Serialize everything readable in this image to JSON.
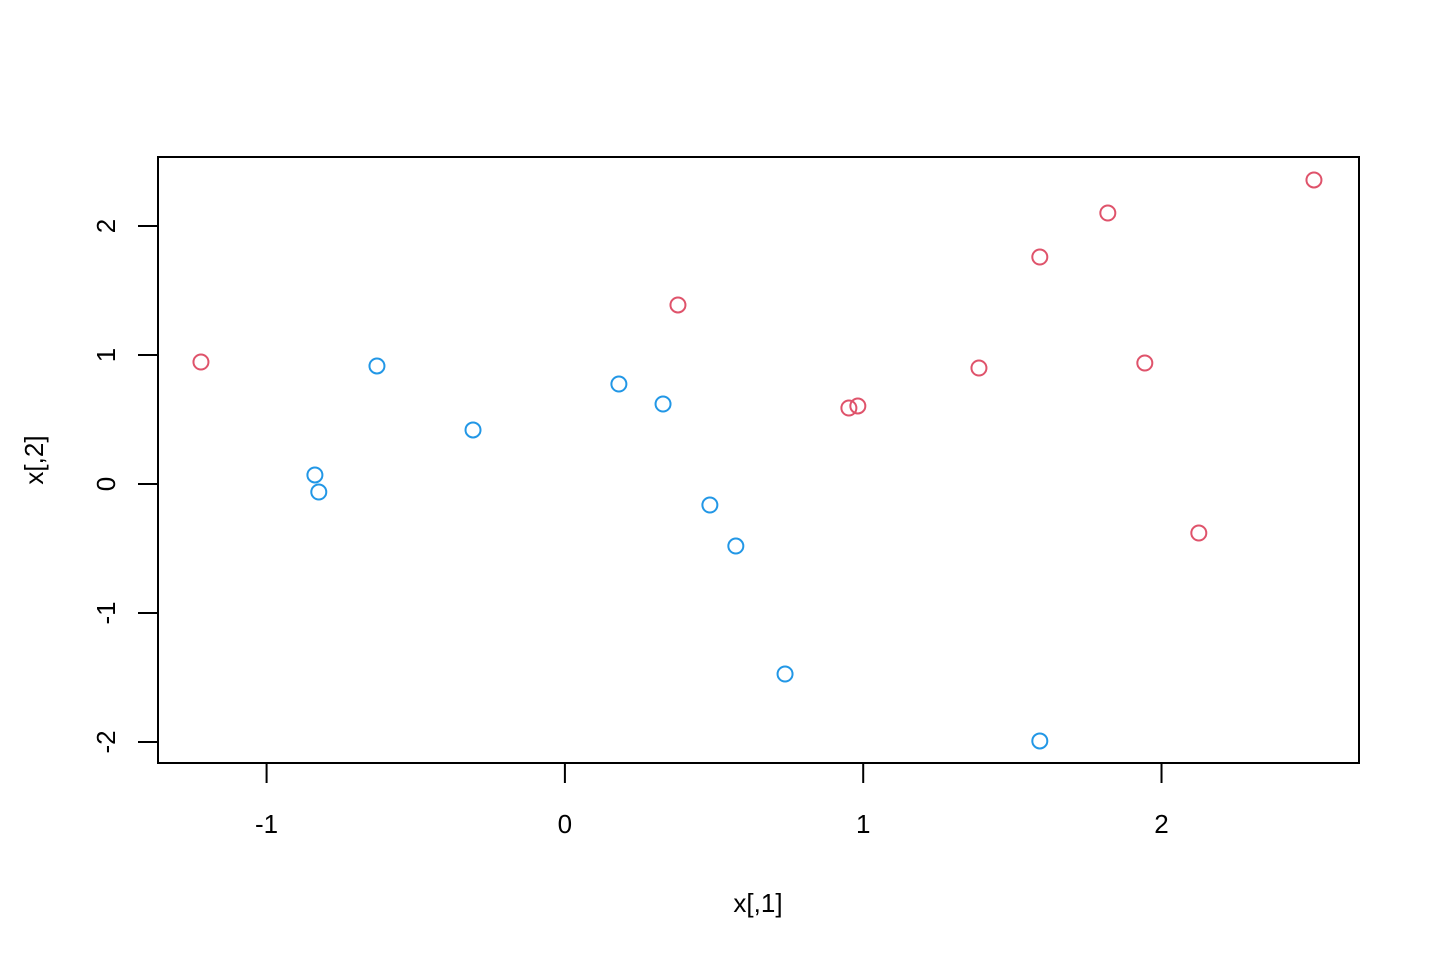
{
  "chart_data": {
    "type": "scatter",
    "xlabel": "x[,1]",
    "ylabel": "x[,2]",
    "xlim": [
      -1.364,
      2.662
    ],
    "ylim": [
      -2.163,
      2.535
    ],
    "xticks": [
      -1,
      0,
      1,
      2
    ],
    "yticks": [
      -2,
      -1,
      0,
      1,
      2
    ],
    "series": [
      {
        "color": "#DF536B",
        "x": [
          -1.22,
          0.379,
          0.952,
          0.982,
          1.388,
          1.592,
          1.82,
          1.944,
          2.125,
          2.511
        ],
        "values": [
          0.946,
          1.388,
          0.589,
          0.605,
          0.899,
          1.76,
          2.101,
          0.938,
          -0.38,
          2.357
        ]
      },
      {
        "color": "#2297E6",
        "x": [
          -0.63,
          -0.838,
          -0.825,
          -0.308,
          0.181,
          0.329,
          0.486,
          0.573,
          0.738,
          1.592
        ],
        "values": [
          0.915,
          0.07,
          -0.062,
          0.419,
          0.775,
          0.62,
          -0.163,
          -0.481,
          -1.473,
          -1.992
        ]
      }
    ]
  }
}
